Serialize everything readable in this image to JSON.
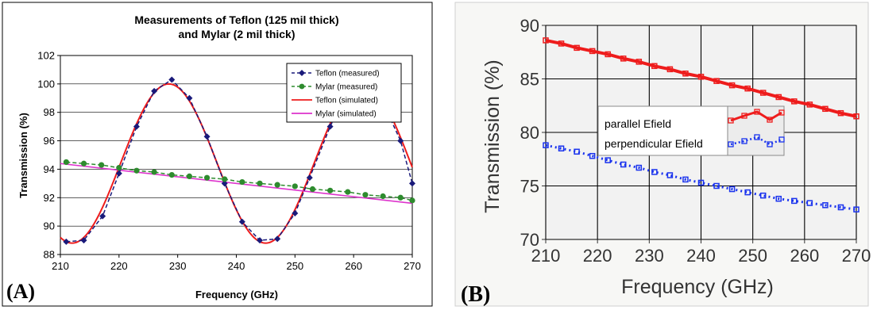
{
  "panel_a": {
    "label": "(A)",
    "chart_data": {
      "type": "line",
      "title_line1": "Measurements of Teflon (125 mil thick)",
      "title_line2": "and Mylar (2 mil thick)",
      "xlabel": "Frequency (GHz)",
      "ylabel": "Transmission (%)",
      "xlim": [
        210,
        270
      ],
      "ylim": [
        88,
        102
      ],
      "xticks": [
        210,
        220,
        230,
        240,
        250,
        260,
        270
      ],
      "yticks": [
        88,
        90,
        92,
        94,
        96,
        98,
        100,
        102
      ],
      "grid": true,
      "legend_position": "top-right",
      "series": [
        {
          "name": "Teflon (measured)",
          "style": "dashed",
          "marker": "diamond",
          "color": "#1a1a7a",
          "x": [
            211,
            214,
            217.2,
            220,
            223,
            226,
            229,
            232,
            235,
            238,
            241,
            244,
            247,
            250,
            252.5,
            256,
            259,
            262,
            265,
            268,
            270
          ],
          "y": [
            88.9,
            89.0,
            90.7,
            93.7,
            97.0,
            99.5,
            100.3,
            99.0,
            96.3,
            93.0,
            90.3,
            89.0,
            89.1,
            90.9,
            93.4,
            97.0,
            99.6,
            99.9,
            98.7,
            96.0,
            93.0
          ]
        },
        {
          "name": "Mylar (measured)",
          "style": "dashed",
          "marker": "circle",
          "color": "#2e8b2e",
          "x": [
            211,
            214,
            217,
            220,
            223,
            226,
            229,
            232,
            235,
            238,
            241,
            244,
            247,
            250,
            253,
            256,
            259,
            262,
            265,
            268,
            270
          ],
          "y": [
            94.5,
            94.4,
            94.3,
            94.1,
            93.9,
            93.8,
            93.6,
            93.5,
            93.4,
            93.3,
            93.1,
            93.0,
            92.9,
            92.8,
            92.6,
            92.5,
            92.4,
            92.2,
            92.1,
            92.0,
            91.8
          ]
        },
        {
          "name": "Teflon (simulated)",
          "style": "solid",
          "marker": "none",
          "color": "#ee1c1c",
          "model": {
            "mid": 94.4,
            "amp": 5.6,
            "period": 33.0,
            "peak_x": 228.5
          }
        },
        {
          "name": "Mylar (simulated)",
          "style": "solid",
          "marker": "none",
          "color": "#dd33cc",
          "x": [
            210,
            270
          ],
          "y": [
            94.4,
            91.6
          ]
        }
      ]
    }
  },
  "panel_b": {
    "label": "(B)",
    "chart_data": {
      "type": "line",
      "xlabel": "Frequency (GHz)",
      "ylabel": "Transmission (%)",
      "xlim": [
        210,
        270
      ],
      "ylim": [
        70,
        90
      ],
      "xticks": [
        210,
        220,
        230,
        240,
        250,
        260,
        270
      ],
      "yticks": [
        70,
        75,
        80,
        85,
        90
      ],
      "grid": true,
      "legend_position": "center",
      "series": [
        {
          "name": "parallel Efield",
          "style": "solid",
          "marker": "square",
          "color": "#ee1c1c",
          "x": [
            210,
            213,
            216,
            219,
            222,
            225,
            228,
            231,
            234,
            237,
            240,
            243,
            246,
            249,
            252,
            255,
            258,
            261,
            264,
            267,
            270
          ],
          "y": [
            88.6,
            88.3,
            87.9,
            87.6,
            87.3,
            86.9,
            86.6,
            86.2,
            85.9,
            85.5,
            85.2,
            84.8,
            84.4,
            84.1,
            83.7,
            83.3,
            82.9,
            82.6,
            82.2,
            81.8,
            81.5
          ]
        },
        {
          "name": "perpendicular Efield",
          "style": "dotted",
          "marker": "square",
          "color": "#1a33ee",
          "x": [
            210,
            213,
            216,
            219,
            222,
            225,
            228,
            231,
            234,
            237,
            240,
            243,
            246,
            249,
            252,
            255,
            258,
            261,
            264,
            267,
            270
          ],
          "y": [
            78.8,
            78.5,
            78.2,
            77.8,
            77.4,
            77.0,
            76.7,
            76.3,
            76.0,
            75.6,
            75.3,
            75.0,
            74.7,
            74.4,
            74.1,
            73.8,
            73.6,
            73.4,
            73.2,
            73.0,
            72.8
          ]
        }
      ]
    }
  }
}
